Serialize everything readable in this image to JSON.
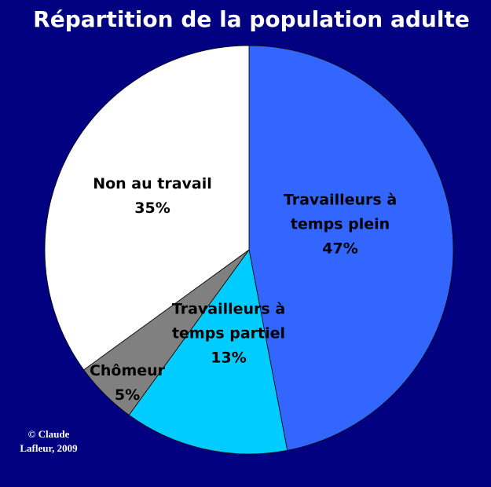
{
  "chart_data": {
    "type": "pie",
    "title": "Répartition de la population adulte",
    "categories": [
      "Travailleurs à temps plein",
      "Travailleurs à temps partiel",
      "Chômeur",
      "Non au travail"
    ],
    "values": [
      47,
      13,
      5,
      35
    ],
    "value_labels": [
      "47%",
      "13%",
      "5%",
      "35%"
    ],
    "colors": [
      "#3366ff",
      "#00ccff",
      "#808080",
      "#ffffff"
    ],
    "credit": [
      "© Claude",
      "Lafleur, 2009"
    ]
  }
}
